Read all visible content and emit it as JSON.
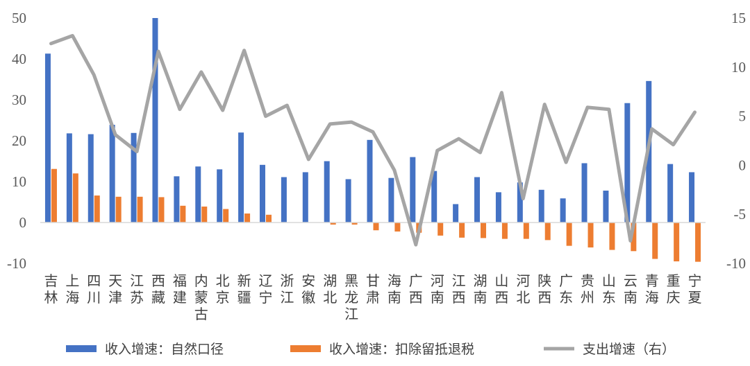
{
  "chart_data": {
    "type": "bar",
    "categories": [
      "吉林",
      "上海",
      "四川",
      "天津",
      "江苏",
      "西藏",
      "福建",
      "内蒙古",
      "北京",
      "新疆",
      "辽宁",
      "浙江",
      "安徽",
      "湖北",
      "黑龙江",
      "甘肃",
      "海南",
      "广西",
      "河南",
      "江西",
      "湖南",
      "山西",
      "河北",
      "陕西",
      "广东",
      "贵州",
      "山东",
      "云南",
      "青海",
      "重庆",
      "宁夏"
    ],
    "series": [
      {
        "name": "收入增速：自然口径",
        "kind": "bar",
        "axis": "left",
        "color": "#4472c4",
        "values": [
          41.3,
          21.8,
          21.6,
          23.9,
          21.9,
          50.0,
          11.3,
          13.7,
          13.0,
          22.0,
          14.1,
          11.1,
          12.3,
          15.0,
          10.6,
          20.2,
          10.9,
          16.0,
          12.6,
          4.5,
          11.1,
          7.4,
          9.8,
          8.0,
          5.9,
          14.5,
          7.8,
          29.2,
          34.6,
          14.3,
          12.3
        ]
      },
      {
        "name": "收入增速：扣除留抵退税",
        "kind": "bar",
        "axis": "left",
        "color": "#ed7d31",
        "values": [
          13.1,
          12.0,
          6.6,
          6.3,
          6.3,
          6.2,
          4.1,
          3.9,
          3.3,
          2.2,
          1.9,
          0.0,
          0.0,
          -0.5,
          -0.5,
          -1.9,
          -2.2,
          -2.5,
          -3.2,
          -3.7,
          -3.8,
          -4.0,
          -4.0,
          -4.3,
          -5.7,
          -6.1,
          -6.7,
          -7.0,
          -8.9,
          -9.5,
          -9.6
        ]
      },
      {
        "name": "支出增速（右）",
        "kind": "line",
        "axis": "right",
        "color": "#a5a5a5",
        "values": [
          12.4,
          13.2,
          9.2,
          3.1,
          1.4,
          11.6,
          5.7,
          9.5,
          5.6,
          11.7,
          5.0,
          6.1,
          0.6,
          4.2,
          4.4,
          3.4,
          -0.5,
          -8.1,
          1.5,
          2.7,
          1.3,
          7.4,
          -3.4,
          6.2,
          0.3,
          5.9,
          5.7,
          -7.7,
          3.7,
          2.1,
          5.4
        ]
      }
    ],
    "ylim": [
      -10,
      50
    ],
    "y_ticks": [
      50,
      40,
      30,
      20,
      10,
      0,
      -10
    ],
    "y2lim": [
      -10,
      15
    ],
    "y2_ticks": [
      15,
      10,
      5,
      0,
      -5,
      -10
    ],
    "grid": false,
    "legend_position": "bottom"
  }
}
